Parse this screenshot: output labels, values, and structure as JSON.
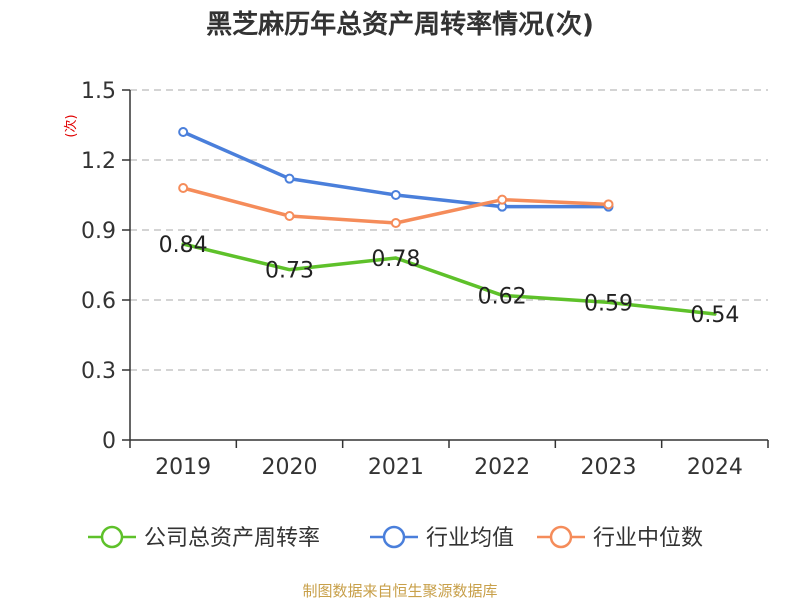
{
  "chart_data": {
    "type": "line",
    "title": "黑芝麻历年总资产周转率情况(次)",
    "ylabel": "(次)",
    "xlabel": "",
    "categories": [
      "2019",
      "2020",
      "2021",
      "2022",
      "2023",
      "2024"
    ],
    "ylim": [
      0,
      1.5
    ],
    "yticks": [
      "0",
      "0.3",
      "0.6",
      "0.9",
      "1.2",
      "1.5"
    ],
    "ytick_values": [
      0,
      0.3,
      0.6,
      0.9,
      1.2,
      1.5
    ],
    "grid": true,
    "legend_position": "bottom",
    "series": [
      {
        "name": "公司总资产周转率",
        "color": "#5ec12a",
        "values": [
          0.84,
          0.73,
          0.78,
          0.62,
          0.59,
          0.54
        ],
        "labels": [
          "0.84",
          "0.73",
          "0.78",
          "0.62",
          "0.59",
          "0.54"
        ]
      },
      {
        "name": "行业均值",
        "color": "#4a7fdb",
        "values": [
          1.32,
          1.12,
          1.05,
          1.0,
          1.0,
          null
        ]
      },
      {
        "name": "行业中位数",
        "color": "#f58c5a",
        "values": [
          1.08,
          0.96,
          0.93,
          1.03,
          1.01,
          null
        ]
      }
    ],
    "source": "制图数据来自恒生聚源数据库"
  }
}
